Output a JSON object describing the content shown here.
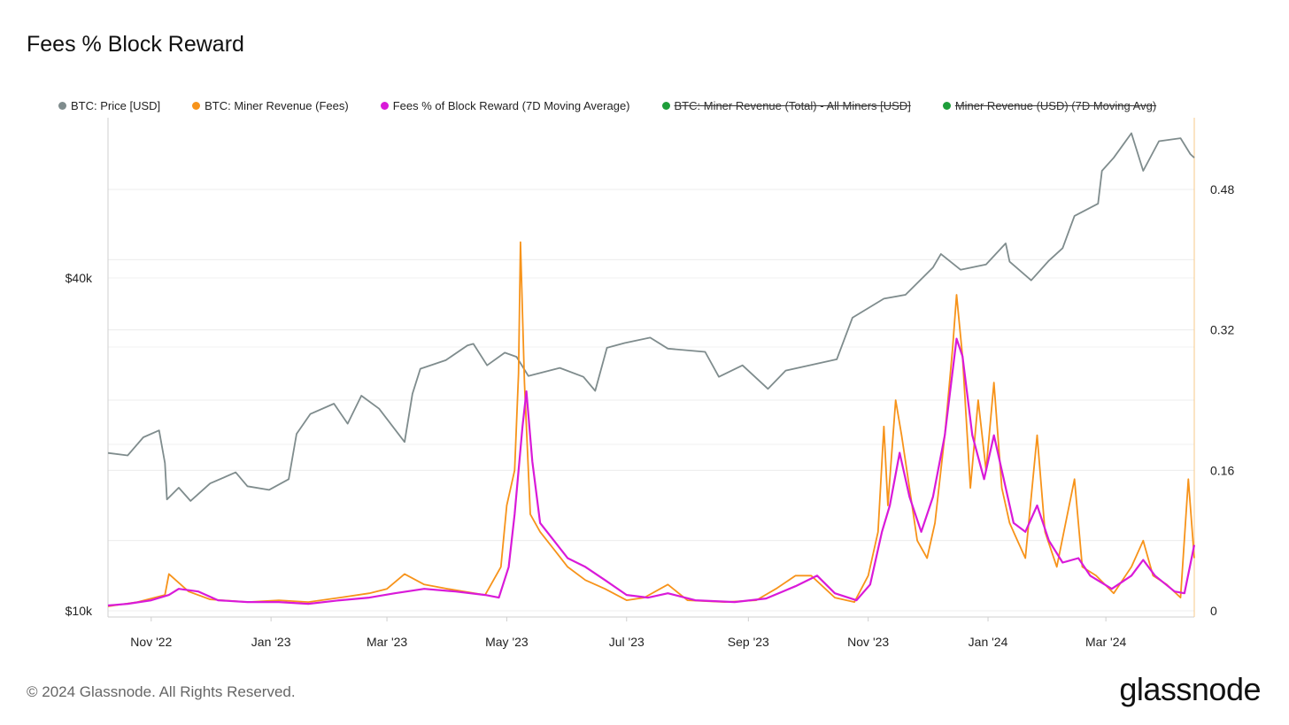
{
  "title": "Fees % Block Reward",
  "footer": "© 2024 Glassnode. All Rights Reserved.",
  "brand": "glassnode",
  "legend": [
    {
      "label": "BTC: Price [USD]",
      "color": "#7f8c8d",
      "hidden": false
    },
    {
      "label": "BTC: Miner Revenue (Fees)",
      "color": "#f7931a",
      "hidden": false
    },
    {
      "label": "Fees % of Block Reward (7D Moving Average)",
      "color": "#d91ad9",
      "hidden": false
    },
    {
      "label": "BTC: Miner Revenue (Total) - All Miners [USD]",
      "color": "#1e9e3a",
      "hidden": true
    },
    {
      "label": "Miner Revenue (USD) (7D Moving Avg)",
      "color": "#1e9e3a",
      "hidden": true
    }
  ],
  "chart_data": {
    "type": "line",
    "x_ticks": [
      "Nov '22",
      "Jan '23",
      "Mar '23",
      "May '23",
      "Jul '23",
      "Sep '23",
      "Nov '23",
      "Jan '24",
      "Mar '24"
    ],
    "x_range": [
      "2022-10-10",
      "2024-04-15"
    ],
    "y_left": {
      "scale": "log",
      "range": [
        10000,
        75000
      ],
      "ticks": [
        "$10k",
        "$40k"
      ]
    },
    "y_right": {
      "range": [
        0,
        0.56
      ],
      "ticks": [
        "0",
        "0.16",
        "0.32",
        "0.48"
      ]
    },
    "series": [
      {
        "name": "BTC: Price [USD]",
        "color": "#7f8c8d",
        "axis": "left",
        "points": [
          [
            "2022-10-10",
            19300
          ],
          [
            "2022-10-20",
            19100
          ],
          [
            "2022-10-28",
            20600
          ],
          [
            "2022-11-05",
            21200
          ],
          [
            "2022-11-08",
            18500
          ],
          [
            "2022-11-09",
            15900
          ],
          [
            "2022-11-15",
            16700
          ],
          [
            "2022-11-21",
            15800
          ],
          [
            "2022-12-01",
            17000
          ],
          [
            "2022-12-14",
            17800
          ],
          [
            "2022-12-20",
            16800
          ],
          [
            "2022-12-31",
            16550
          ],
          [
            "2023-01-10",
            17300
          ],
          [
            "2023-01-14",
            20900
          ],
          [
            "2023-01-21",
            22700
          ],
          [
            "2023-02-02",
            23700
          ],
          [
            "2023-02-09",
            21800
          ],
          [
            "2023-02-16",
            24500
          ],
          [
            "2023-02-25",
            23200
          ],
          [
            "2023-03-10",
            20200
          ],
          [
            "2023-03-14",
            24700
          ],
          [
            "2023-03-18",
            27400
          ],
          [
            "2023-03-31",
            28400
          ],
          [
            "2023-04-11",
            30200
          ],
          [
            "2023-04-14",
            30400
          ],
          [
            "2023-04-21",
            27800
          ],
          [
            "2023-04-30",
            29300
          ],
          [
            "2023-05-06",
            28800
          ],
          [
            "2023-05-12",
            26600
          ],
          [
            "2023-05-28",
            27500
          ],
          [
            "2023-06-09",
            26500
          ],
          [
            "2023-06-15",
            25000
          ],
          [
            "2023-06-21",
            29900
          ],
          [
            "2023-06-30",
            30500
          ],
          [
            "2023-07-13",
            31200
          ],
          [
            "2023-07-22",
            29800
          ],
          [
            "2023-08-10",
            29400
          ],
          [
            "2023-08-17",
            26500
          ],
          [
            "2023-08-29",
            27800
          ],
          [
            "2023-09-11",
            25200
          ],
          [
            "2023-09-20",
            27200
          ],
          [
            "2023-10-02",
            27800
          ],
          [
            "2023-10-16",
            28500
          ],
          [
            "2023-10-24",
            33900
          ],
          [
            "2023-11-09",
            36700
          ],
          [
            "2023-11-20",
            37300
          ],
          [
            "2023-12-04",
            41800
          ],
          [
            "2023-12-08",
            44200
          ],
          [
            "2023-12-18",
            41400
          ],
          [
            "2023-12-31",
            42300
          ],
          [
            "2024-01-10",
            46200
          ],
          [
            "2024-01-12",
            42800
          ],
          [
            "2024-01-23",
            39600
          ],
          [
            "2024-02-01",
            43000
          ],
          [
            "2024-02-08",
            45300
          ],
          [
            "2024-02-14",
            51800
          ],
          [
            "2024-02-26",
            54500
          ],
          [
            "2024-02-28",
            62500
          ],
          [
            "2024-03-05",
            66000
          ],
          [
            "2024-03-14",
            73100
          ],
          [
            "2024-03-20",
            62500
          ],
          [
            "2024-03-28",
            70700
          ],
          [
            "2024-04-08",
            71600
          ],
          [
            "2024-04-13",
            67000
          ],
          [
            "2024-04-15",
            66000
          ]
        ]
      },
      {
        "name": "BTC: Miner Revenue (Fees)",
        "color": "#f7931a",
        "axis": "right",
        "points": [
          [
            "2022-10-10",
            0.005
          ],
          [
            "2022-10-25",
            0.01
          ],
          [
            "2022-11-08",
            0.018
          ],
          [
            "2022-11-10",
            0.042
          ],
          [
            "2022-11-20",
            0.022
          ],
          [
            "2022-12-01",
            0.013
          ],
          [
            "2022-12-20",
            0.01
          ],
          [
            "2023-01-05",
            0.012
          ],
          [
            "2023-01-20",
            0.01
          ],
          [
            "2023-02-05",
            0.015
          ],
          [
            "2023-02-20",
            0.02
          ],
          [
            "2023-03-01",
            0.025
          ],
          [
            "2023-03-10",
            0.042
          ],
          [
            "2023-03-20",
            0.03
          ],
          [
            "2023-04-01",
            0.025
          ],
          [
            "2023-04-20",
            0.018
          ],
          [
            "2023-04-28",
            0.05
          ],
          [
            "2023-05-01",
            0.12
          ],
          [
            "2023-05-05",
            0.16
          ],
          [
            "2023-05-07",
            0.27
          ],
          [
            "2023-05-08",
            0.42
          ],
          [
            "2023-05-10",
            0.26
          ],
          [
            "2023-05-13",
            0.11
          ],
          [
            "2023-05-18",
            0.09
          ],
          [
            "2023-05-25",
            0.07
          ],
          [
            "2023-06-01",
            0.05
          ],
          [
            "2023-06-10",
            0.035
          ],
          [
            "2023-06-20",
            0.025
          ],
          [
            "2023-07-01",
            0.012
          ],
          [
            "2023-07-10",
            0.015
          ],
          [
            "2023-07-22",
            0.03
          ],
          [
            "2023-08-01",
            0.012
          ],
          [
            "2023-08-20",
            0.01
          ],
          [
            "2023-09-05",
            0.012
          ],
          [
            "2023-09-15",
            0.025
          ],
          [
            "2023-09-25",
            0.04
          ],
          [
            "2023-10-03",
            0.04
          ],
          [
            "2023-10-15",
            0.015
          ],
          [
            "2023-10-25",
            0.01
          ],
          [
            "2023-11-01",
            0.04
          ],
          [
            "2023-11-06",
            0.09
          ],
          [
            "2023-11-09",
            0.21
          ],
          [
            "2023-11-11",
            0.12
          ],
          [
            "2023-11-15",
            0.24
          ],
          [
            "2023-11-18",
            0.2
          ],
          [
            "2023-11-22",
            0.14
          ],
          [
            "2023-11-26",
            0.08
          ],
          [
            "2023-12-01",
            0.06
          ],
          [
            "2023-12-05",
            0.1
          ],
          [
            "2023-12-10",
            0.2
          ],
          [
            "2023-12-14",
            0.3
          ],
          [
            "2023-12-16",
            0.36
          ],
          [
            "2023-12-19",
            0.29
          ],
          [
            "2023-12-23",
            0.14
          ],
          [
            "2023-12-27",
            0.24
          ],
          [
            "2023-12-31",
            0.16
          ],
          [
            "2024-01-04",
            0.26
          ],
          [
            "2024-01-08",
            0.14
          ],
          [
            "2024-01-12",
            0.1
          ],
          [
            "2024-01-16",
            0.08
          ],
          [
            "2024-01-20",
            0.06
          ],
          [
            "2024-01-26",
            0.2
          ],
          [
            "2024-01-30",
            0.09
          ],
          [
            "2024-02-05",
            0.05
          ],
          [
            "2024-02-14",
            0.15
          ],
          [
            "2024-02-18",
            0.05
          ],
          [
            "2024-02-25",
            0.04
          ],
          [
            "2024-03-05",
            0.02
          ],
          [
            "2024-03-14",
            0.05
          ],
          [
            "2024-03-20",
            0.08
          ],
          [
            "2024-03-25",
            0.04
          ],
          [
            "2024-04-01",
            0.03
          ],
          [
            "2024-04-08",
            0.015
          ],
          [
            "2024-04-12",
            0.15
          ],
          [
            "2024-04-15",
            0.06
          ]
        ]
      },
      {
        "name": "Fees % of Block Reward (7D Moving Average)",
        "color": "#d91ad9",
        "axis": "right",
        "points": [
          [
            "2022-10-10",
            0.006
          ],
          [
            "2022-10-20",
            0.008
          ],
          [
            "2022-11-01",
            0.012
          ],
          [
            "2022-11-10",
            0.018
          ],
          [
            "2022-11-15",
            0.025
          ],
          [
            "2022-11-25",
            0.022
          ],
          [
            "2022-12-05",
            0.012
          ],
          [
            "2022-12-20",
            0.01
          ],
          [
            "2023-01-05",
            0.01
          ],
          [
            "2023-01-20",
            0.008
          ],
          [
            "2023-02-05",
            0.012
          ],
          [
            "2023-02-20",
            0.015
          ],
          [
            "2023-03-05",
            0.02
          ],
          [
            "2023-03-20",
            0.025
          ],
          [
            "2023-04-05",
            0.022
          ],
          [
            "2023-04-20",
            0.018
          ],
          [
            "2023-04-27",
            0.015
          ],
          [
            "2023-05-02",
            0.05
          ],
          [
            "2023-05-05",
            0.11
          ],
          [
            "2023-05-09",
            0.21
          ],
          [
            "2023-05-11",
            0.25
          ],
          [
            "2023-05-14",
            0.17
          ],
          [
            "2023-05-18",
            0.1
          ],
          [
            "2023-05-25",
            0.08
          ],
          [
            "2023-06-01",
            0.06
          ],
          [
            "2023-06-10",
            0.05
          ],
          [
            "2023-06-20",
            0.035
          ],
          [
            "2023-07-01",
            0.018
          ],
          [
            "2023-07-12",
            0.015
          ],
          [
            "2023-07-22",
            0.02
          ],
          [
            "2023-08-05",
            0.012
          ],
          [
            "2023-08-25",
            0.01
          ],
          [
            "2023-09-10",
            0.014
          ],
          [
            "2023-09-25",
            0.028
          ],
          [
            "2023-10-06",
            0.04
          ],
          [
            "2023-10-15",
            0.02
          ],
          [
            "2023-10-26",
            0.012
          ],
          [
            "2023-11-02",
            0.03
          ],
          [
            "2023-11-08",
            0.09
          ],
          [
            "2023-11-12",
            0.12
          ],
          [
            "2023-11-17",
            0.18
          ],
          [
            "2023-11-22",
            0.13
          ],
          [
            "2023-11-28",
            0.09
          ],
          [
            "2023-12-04",
            0.13
          ],
          [
            "2023-12-10",
            0.2
          ],
          [
            "2023-12-16",
            0.31
          ],
          [
            "2023-12-19",
            0.29
          ],
          [
            "2023-12-24",
            0.2
          ],
          [
            "2023-12-30",
            0.15
          ],
          [
            "2024-01-04",
            0.2
          ],
          [
            "2024-01-09",
            0.15
          ],
          [
            "2024-01-14",
            0.1
          ],
          [
            "2024-01-20",
            0.09
          ],
          [
            "2024-01-26",
            0.12
          ],
          [
            "2024-02-01",
            0.08
          ],
          [
            "2024-02-08",
            0.055
          ],
          [
            "2024-02-16",
            0.06
          ],
          [
            "2024-02-22",
            0.04
          ],
          [
            "2024-03-04",
            0.025
          ],
          [
            "2024-03-14",
            0.04
          ],
          [
            "2024-03-20",
            0.058
          ],
          [
            "2024-03-26",
            0.04
          ],
          [
            "2024-04-05",
            0.022
          ],
          [
            "2024-04-10",
            0.02
          ],
          [
            "2024-04-15",
            0.075
          ]
        ]
      }
    ]
  }
}
